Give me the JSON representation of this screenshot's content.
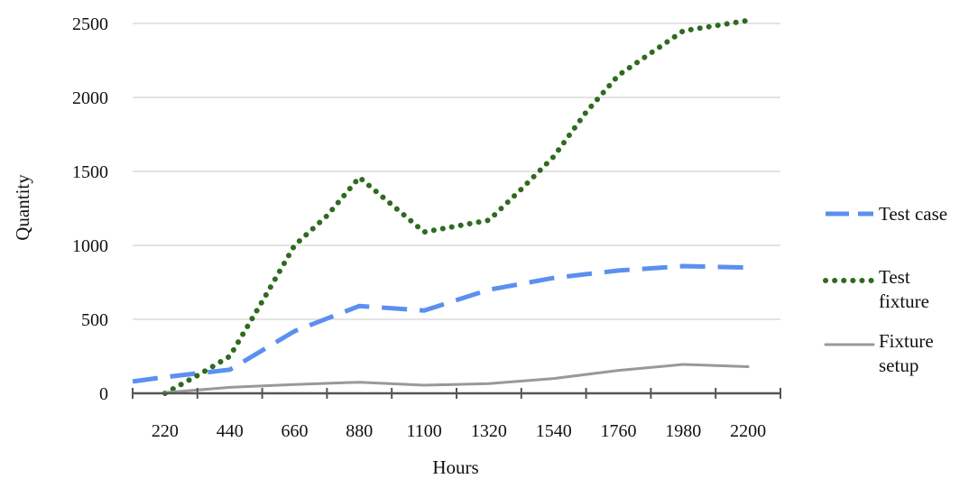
{
  "chart_data": {
    "type": "line",
    "title": "",
    "xlabel": "Hours",
    "ylabel": "Quantity",
    "categories": [
      "220",
      "440",
      "660",
      "880",
      "1100",
      "1320",
      "1540",
      "1760",
      "1980",
      "2200"
    ],
    "x_extent": [
      110,
      2310
    ],
    "ylim": [
      0,
      2500
    ],
    "yticks": [
      "0",
      "500",
      "1000",
      "1500",
      "2000",
      "2500"
    ],
    "grid": true,
    "legend_position": "right",
    "series": [
      {
        "name": "Test case",
        "color": "#5b8ff0",
        "dash": "long-dash",
        "x": [
          110,
          220,
          440,
          660,
          880,
          1100,
          1320,
          1540,
          1760,
          1980,
          2200
        ],
        "y": [
          80,
          110,
          160,
          420,
          590,
          560,
          700,
          780,
          830,
          860,
          850
        ]
      },
      {
        "name": "Test fixture",
        "color": "#2e6b1f",
        "dash": "dotted",
        "x": [
          220,
          330,
          440,
          550,
          660,
          770,
          880,
          1100,
          1320,
          1430,
          1540,
          1650,
          1760,
          1870,
          1980,
          2200
        ],
        "y": [
          0,
          120,
          250,
          620,
          1000,
          1200,
          1460,
          1090,
          1170,
          1380,
          1600,
          1900,
          2150,
          2300,
          2450,
          2520
        ]
      },
      {
        "name": "Fixture setup",
        "color": "#999999",
        "dash": "solid",
        "x": [
          220,
          440,
          660,
          880,
          1100,
          1320,
          1540,
          1760,
          1980,
          2200
        ],
        "y": [
          5,
          40,
          60,
          75,
          55,
          65,
          100,
          155,
          195,
          180
        ]
      }
    ]
  }
}
